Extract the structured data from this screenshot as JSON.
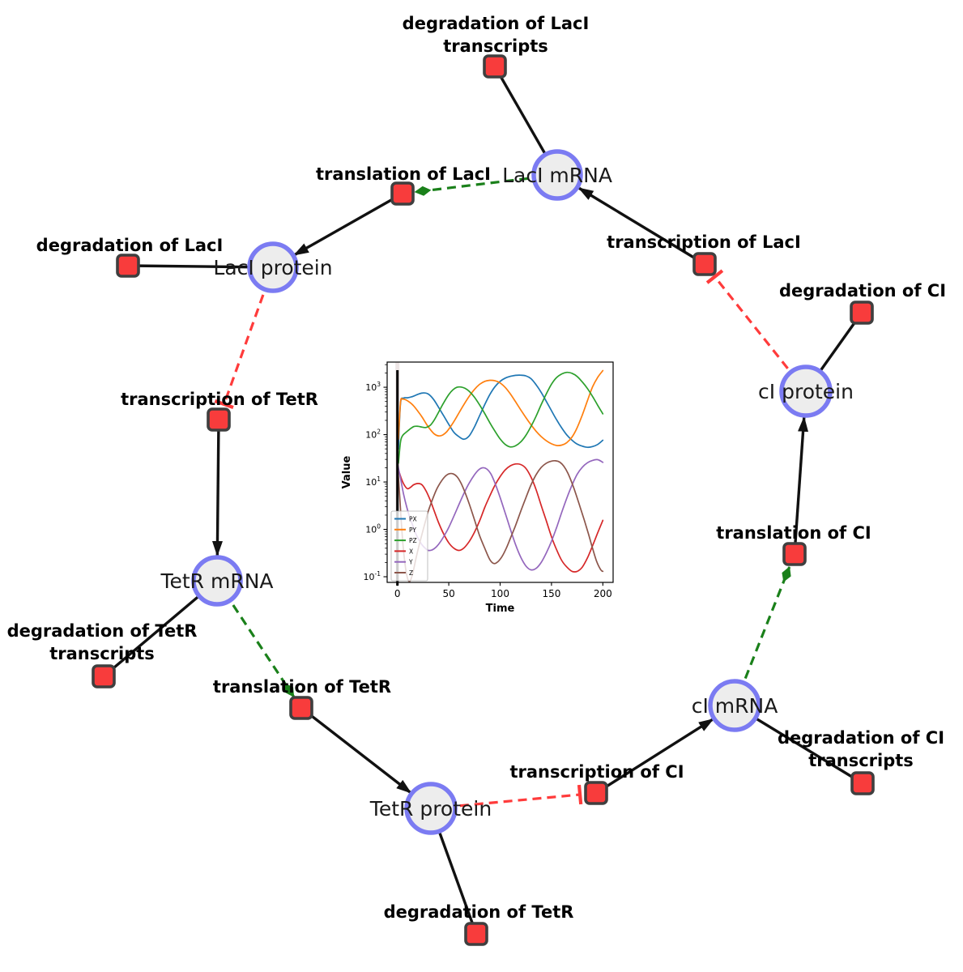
{
  "network": {
    "species": [
      {
        "id": "laci-mrna",
        "label": "LacI mRNA"
      },
      {
        "id": "laci-protein",
        "label": "LacI protein"
      },
      {
        "id": "tetr-mrna",
        "label": "TetR mRNA"
      },
      {
        "id": "tetr-protein",
        "label": "TetR protein"
      },
      {
        "id": "ci-mrna",
        "label": "cI mRNA"
      },
      {
        "id": "ci-protein",
        "label": "cI protein"
      }
    ],
    "reactions": [
      {
        "id": "degradation-of-laci-transcripts",
        "lines": [
          "degradation of LacI",
          "transcripts"
        ]
      },
      {
        "id": "translation-of-laci",
        "lines": [
          "translation of LacI"
        ]
      },
      {
        "id": "degradation-of-laci",
        "lines": [
          "degradation of LacI"
        ]
      },
      {
        "id": "transcription-of-laci",
        "lines": [
          "transcription of LacI"
        ]
      },
      {
        "id": "degradation-of-ci",
        "lines": [
          "degradation of CI"
        ]
      },
      {
        "id": "transcription-of-tetr",
        "lines": [
          "transcription of TetR"
        ]
      },
      {
        "id": "degradation-of-tetr-transcripts",
        "lines": [
          "degradation of TetR",
          "transcripts"
        ]
      },
      {
        "id": "translation-of-tetr",
        "lines": [
          "translation of TetR"
        ]
      },
      {
        "id": "translation-of-ci",
        "lines": [
          "translation of CI"
        ]
      },
      {
        "id": "transcription-of-ci",
        "lines": [
          "transcription of CI"
        ]
      },
      {
        "id": "degradation-of-ci-transcripts",
        "lines": [
          "degradation of CI",
          "transcripts"
        ]
      },
      {
        "id": "degradation-of-tetr",
        "lines": [
          "degradation of TetR"
        ]
      }
    ],
    "colors": {
      "species_fill": "#ededed",
      "species_stroke": "#7b7bf2",
      "reaction_fill": "#f83c3c",
      "reaction_stroke": "#3f3f3f",
      "edge_solid": "#111111",
      "edge_modifier": "#1a801a",
      "edge_inhibition": "#ff3b3b"
    }
  },
  "chart_data": {
    "type": "line",
    "title": "",
    "xlabel": "Time",
    "ylabel": "Value",
    "yscale": "log",
    "xlim": [
      -10,
      210
    ],
    "ylim_log": [
      0.076,
      3400
    ],
    "xticks": [
      0,
      50,
      100,
      150,
      200
    ],
    "ytick_exponents": [
      -1,
      0,
      1,
      2,
      3
    ],
    "grid": false,
    "legend_position": "lower left",
    "vline_x": 0,
    "series": [
      {
        "name": "PX",
        "color": "#1f77b4",
        "points": [
          [
            1,
            50
          ],
          [
            3,
            450
          ],
          [
            6,
            590
          ],
          [
            10,
            600
          ],
          [
            15,
            640
          ],
          [
            20,
            710
          ],
          [
            25,
            760
          ],
          [
            30,
            720
          ],
          [
            35,
            560
          ],
          [
            40,
            380
          ],
          [
            45,
            250
          ],
          [
            50,
            165
          ],
          [
            55,
            112
          ],
          [
            60,
            90
          ],
          [
            65,
            80
          ],
          [
            70,
            95
          ],
          [
            75,
            145
          ],
          [
            80,
            250
          ],
          [
            85,
            430
          ],
          [
            90,
            700
          ],
          [
            95,
            1030
          ],
          [
            100,
            1330
          ],
          [
            105,
            1560
          ],
          [
            110,
            1700
          ],
          [
            115,
            1780
          ],
          [
            120,
            1800
          ],
          [
            125,
            1740
          ],
          [
            130,
            1520
          ],
          [
            135,
            1130
          ],
          [
            140,
            780
          ],
          [
            145,
            500
          ],
          [
            150,
            320
          ],
          [
            155,
            205
          ],
          [
            160,
            138
          ],
          [
            165,
            98
          ],
          [
            170,
            76
          ],
          [
            175,
            63
          ],
          [
            180,
            57
          ],
          [
            185,
            54
          ],
          [
            190,
            56
          ],
          [
            195,
            62
          ],
          [
            200,
            76
          ]
        ]
      },
      {
        "name": "PY",
        "color": "#ff7f0e",
        "points": [
          [
            1,
            80
          ],
          [
            3,
            480
          ],
          [
            5,
            560
          ],
          [
            8,
            545
          ],
          [
            12,
            480
          ],
          [
            16,
            400
          ],
          [
            20,
            310
          ],
          [
            24,
            235
          ],
          [
            28,
            170
          ],
          [
            32,
            128
          ],
          [
            36,
            103
          ],
          [
            40,
            94
          ],
          [
            44,
            98
          ],
          [
            48,
            115
          ],
          [
            52,
            150
          ],
          [
            56,
            205
          ],
          [
            60,
            290
          ],
          [
            65,
            440
          ],
          [
            70,
            650
          ],
          [
            75,
            900
          ],
          [
            80,
            1150
          ],
          [
            85,
            1330
          ],
          [
            90,
            1400
          ],
          [
            95,
            1370
          ],
          [
            100,
            1230
          ],
          [
            105,
            990
          ],
          [
            110,
            720
          ],
          [
            115,
            495
          ],
          [
            120,
            335
          ],
          [
            125,
            230
          ],
          [
            130,
            162
          ],
          [
            135,
            118
          ],
          [
            140,
            91
          ],
          [
            145,
            74
          ],
          [
            150,
            64
          ],
          [
            155,
            59
          ],
          [
            160,
            60
          ],
          [
            165,
            68
          ],
          [
            170,
            89
          ],
          [
            175,
            140
          ],
          [
            180,
            260
          ],
          [
            185,
            520
          ],
          [
            190,
            1020
          ],
          [
            195,
            1620
          ],
          [
            200,
            2250
          ]
        ]
      },
      {
        "name": "PZ",
        "color": "#2ca02c",
        "points": [
          [
            1,
            25
          ],
          [
            3,
            70
          ],
          [
            5,
            95
          ],
          [
            8,
            110
          ],
          [
            12,
            130
          ],
          [
            16,
            148
          ],
          [
            20,
            150
          ],
          [
            24,
            144
          ],
          [
            28,
            142
          ],
          [
            32,
            158
          ],
          [
            36,
            205
          ],
          [
            40,
            295
          ],
          [
            45,
            470
          ],
          [
            50,
            700
          ],
          [
            54,
            880
          ],
          [
            58,
            1000
          ],
          [
            62,
            1010
          ],
          [
            66,
            945
          ],
          [
            70,
            815
          ],
          [
            75,
            615
          ],
          [
            80,
            425
          ],
          [
            85,
            278
          ],
          [
            90,
            178
          ],
          [
            95,
            118
          ],
          [
            100,
            81
          ],
          [
            105,
            62
          ],
          [
            110,
            55
          ],
          [
            115,
            58
          ],
          [
            120,
            70
          ],
          [
            125,
            96
          ],
          [
            130,
            148
          ],
          [
            135,
            245
          ],
          [
            140,
            430
          ],
          [
            145,
            730
          ],
          [
            150,
            1160
          ],
          [
            155,
            1610
          ],
          [
            160,
            1910
          ],
          [
            165,
            2060
          ],
          [
            170,
            1970
          ],
          [
            175,
            1690
          ],
          [
            180,
            1290
          ],
          [
            185,
            940
          ],
          [
            190,
            640
          ],
          [
            195,
            415
          ],
          [
            200,
            275
          ]
        ]
      },
      {
        "name": "X",
        "color": "#d62728",
        "points": [
          [
            0,
            20
          ],
          [
            2,
            15.5
          ],
          [
            4,
            11.5
          ],
          [
            7,
            8.4
          ],
          [
            10,
            7.2
          ],
          [
            13,
            7.8
          ],
          [
            16,
            8.8
          ],
          [
            20,
            9.3
          ],
          [
            24,
            8.7
          ],
          [
            28,
            6.4
          ],
          [
            32,
            4.1
          ],
          [
            36,
            2.4
          ],
          [
            40,
            1.4
          ],
          [
            45,
            0.8
          ],
          [
            50,
            0.52
          ],
          [
            55,
            0.4
          ],
          [
            60,
            0.36
          ],
          [
            65,
            0.41
          ],
          [
            70,
            0.56
          ],
          [
            75,
            0.87
          ],
          [
            80,
            1.5
          ],
          [
            85,
            2.9
          ],
          [
            90,
            5.1
          ],
          [
            95,
            8.6
          ],
          [
            100,
            13
          ],
          [
            105,
            18
          ],
          [
            110,
            22
          ],
          [
            115,
            24
          ],
          [
            120,
            23.4
          ],
          [
            125,
            19.5
          ],
          [
            130,
            12.8
          ],
          [
            135,
            6.9
          ],
          [
            140,
            3.2
          ],
          [
            145,
            1.5
          ],
          [
            150,
            0.7
          ],
          [
            155,
            0.37
          ],
          [
            160,
            0.22
          ],
          [
            165,
            0.16
          ],
          [
            170,
            0.13
          ],
          [
            175,
            0.13
          ],
          [
            180,
            0.16
          ],
          [
            185,
            0.25
          ],
          [
            190,
            0.45
          ],
          [
            195,
            0.85
          ],
          [
            200,
            1.55
          ]
        ]
      },
      {
        "name": "Y",
        "color": "#9467bd",
        "points": [
          [
            0,
            25
          ],
          [
            3,
            12
          ],
          [
            6,
            5.5
          ],
          [
            9,
            3
          ],
          [
            12,
            1.8
          ],
          [
            15,
            1.2
          ],
          [
            18,
            0.8
          ],
          [
            21,
            0.6
          ],
          [
            24,
            0.47
          ],
          [
            27,
            0.4
          ],
          [
            30,
            0.36
          ],
          [
            34,
            0.37
          ],
          [
            38,
            0.43
          ],
          [
            42,
            0.55
          ],
          [
            46,
            0.76
          ],
          [
            50,
            1.1
          ],
          [
            55,
            1.9
          ],
          [
            60,
            3.4
          ],
          [
            65,
            5.9
          ],
          [
            70,
            9.6
          ],
          [
            75,
            14.2
          ],
          [
            79,
            18
          ],
          [
            83,
            20
          ],
          [
            87,
            18.8
          ],
          [
            91,
            14.8
          ],
          [
            95,
            9.4
          ],
          [
            100,
            4.7
          ],
          [
            105,
            2.2
          ],
          [
            110,
            1.0
          ],
          [
            115,
            0.48
          ],
          [
            120,
            0.26
          ],
          [
            125,
            0.17
          ],
          [
            130,
            0.14
          ],
          [
            135,
            0.15
          ],
          [
            140,
            0.2
          ],
          [
            145,
            0.32
          ],
          [
            150,
            0.56
          ],
          [
            155,
            1.1
          ],
          [
            160,
            2.3
          ],
          [
            165,
            4.6
          ],
          [
            170,
            8.6
          ],
          [
            175,
            14.5
          ],
          [
            180,
            20.5
          ],
          [
            185,
            25.5
          ],
          [
            190,
            28.6
          ],
          [
            195,
            29.6
          ],
          [
            200,
            26
          ]
        ]
      },
      {
        "name": "Z",
        "color": "#8c564b",
        "points": [
          [
            0,
            25
          ],
          [
            2,
            6
          ],
          [
            4,
            1.2
          ],
          [
            6,
            0.35
          ],
          [
            8,
            0.15
          ],
          [
            10,
            0.09
          ],
          [
            12,
            0.08
          ],
          [
            14,
            0.1
          ],
          [
            16,
            0.15
          ],
          [
            18,
            0.24
          ],
          [
            21,
            0.45
          ],
          [
            24,
            0.8
          ],
          [
            27,
            1.4
          ],
          [
            30,
            2.4
          ],
          [
            34,
            4.2
          ],
          [
            38,
            6.9
          ],
          [
            42,
            9.8
          ],
          [
            46,
            12.8
          ],
          [
            50,
            14.8
          ],
          [
            54,
            14.9
          ],
          [
            58,
            13
          ],
          [
            62,
            9.4
          ],
          [
            66,
            5.9
          ],
          [
            70,
            3.4
          ],
          [
            75,
            1.6
          ],
          [
            80,
            0.74
          ],
          [
            85,
            0.4
          ],
          [
            90,
            0.23
          ],
          [
            94,
            0.19
          ],
          [
            98,
            0.21
          ],
          [
            102,
            0.27
          ],
          [
            106,
            0.4
          ],
          [
            110,
            0.65
          ],
          [
            115,
            1.2
          ],
          [
            120,
            2.4
          ],
          [
            125,
            4.6
          ],
          [
            130,
            8.6
          ],
          [
            135,
            14.2
          ],
          [
            140,
            20.3
          ],
          [
            145,
            25
          ],
          [
            150,
            27.6
          ],
          [
            154,
            28
          ],
          [
            158,
            26.3
          ],
          [
            162,
            21.6
          ],
          [
            166,
            15.3
          ],
          [
            170,
            9.4
          ],
          [
            174,
            5.4
          ],
          [
            178,
            2.9
          ],
          [
            182,
            1.55
          ],
          [
            186,
            0.8
          ],
          [
            190,
            0.4
          ],
          [
            194,
            0.21
          ],
          [
            198,
            0.14
          ],
          [
            200,
            0.13
          ]
        ]
      }
    ]
  }
}
